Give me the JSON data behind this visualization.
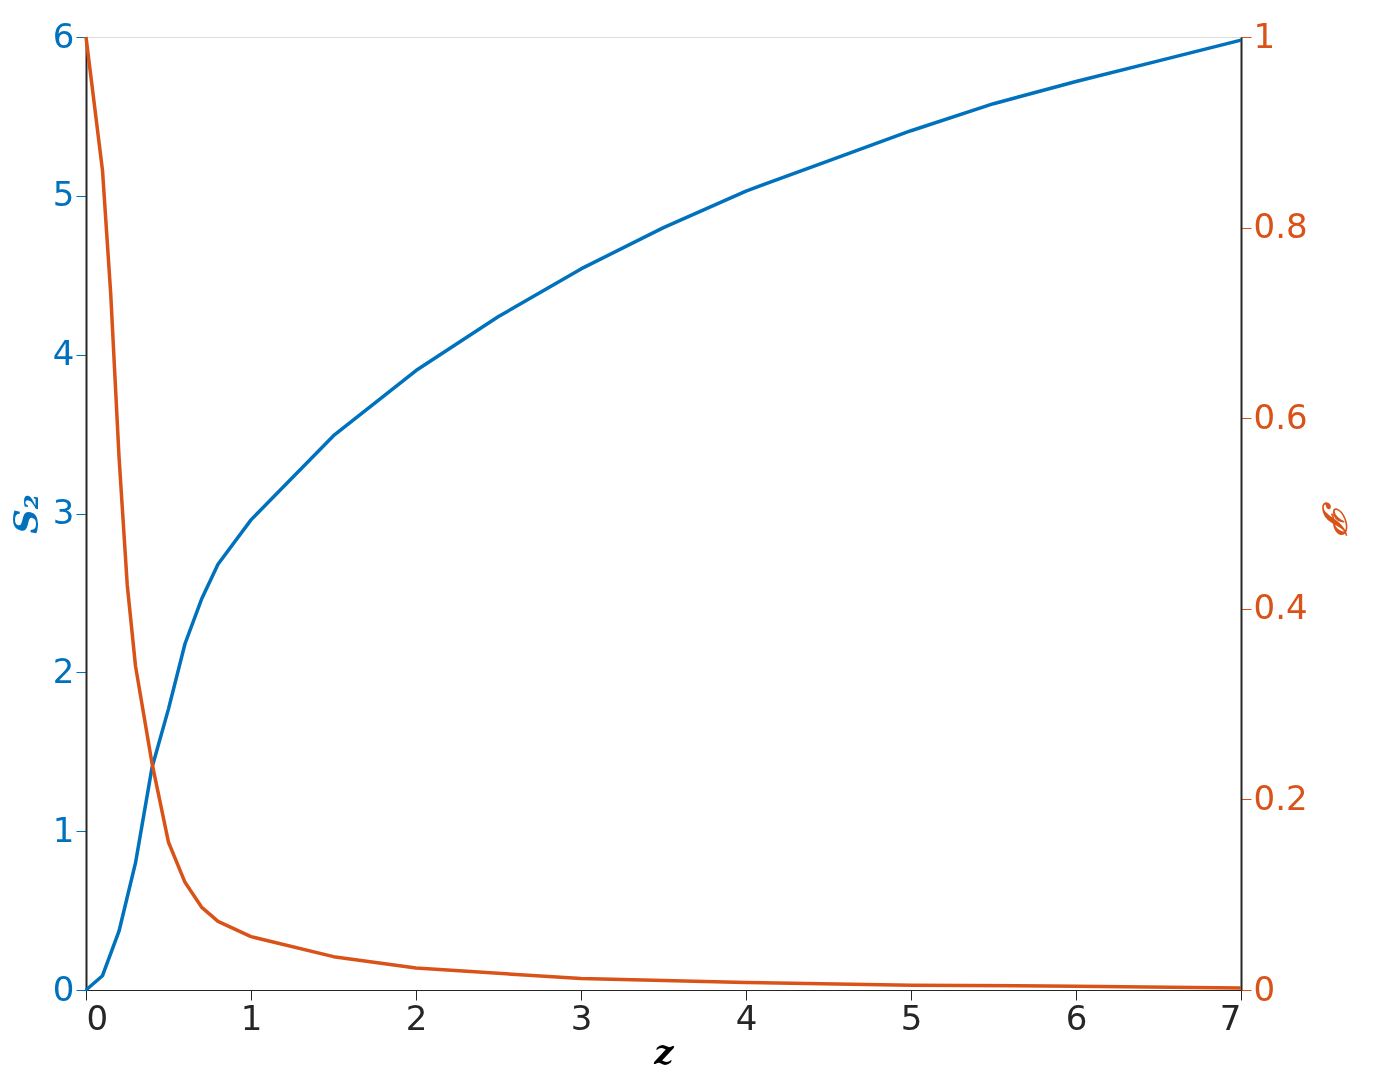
{
  "chart_data": {
    "type": "line",
    "xlabel": "z",
    "ylabel": "S₂",
    "y2label": "𝒫",
    "xlim": [
      0,
      7
    ],
    "xticks": [
      0,
      1,
      2,
      3,
      4,
      5,
      6,
      7
    ],
    "ylim": [
      0,
      6
    ],
    "yticks": [
      0,
      1,
      2,
      3,
      4,
      5,
      6
    ],
    "y2lim": [
      0,
      1
    ],
    "y2ticks": [
      0,
      0.2,
      0.4,
      0.6,
      0.8,
      1
    ],
    "grid": false,
    "marker": "none",
    "line_style": "solid",
    "series": [
      {
        "color": "#0072bd",
        "x": [
          0,
          0.1,
          0.2,
          0.3,
          0.4,
          0.5,
          0.6,
          0.7,
          0.8,
          1,
          1.5,
          2,
          2.5,
          3,
          3.5,
          4,
          4.5,
          5,
          5.5,
          6,
          6.5,
          7
        ],
        "values": [
          0,
          0.09,
          0.37,
          0.8,
          1.4,
          1.77,
          2.18,
          2.46,
          2.68,
          2.96,
          3.49,
          3.9,
          4.24,
          4.54,
          4.8,
          5.03,
          5.22,
          5.41,
          5.58,
          5.72,
          5.85,
          5.98
        ]
      },
      {
        "color": "#d95319",
        "axis": "y2",
        "x": [
          0,
          0.1,
          0.15,
          0.2,
          0.25,
          0.3,
          0.4,
          0.5,
          0.6,
          0.7,
          0.8,
          1,
          1.5,
          2,
          3,
          4,
          5,
          6,
          7
        ],
        "values": [
          1,
          0.86,
          0.73,
          0.56,
          0.425,
          0.34,
          0.238,
          0.155,
          0.113,
          0.087,
          0.072,
          0.056,
          0.035,
          0.023,
          0.012,
          0.008,
          0.005,
          0.004,
          0.002
        ]
      }
    ]
  }
}
